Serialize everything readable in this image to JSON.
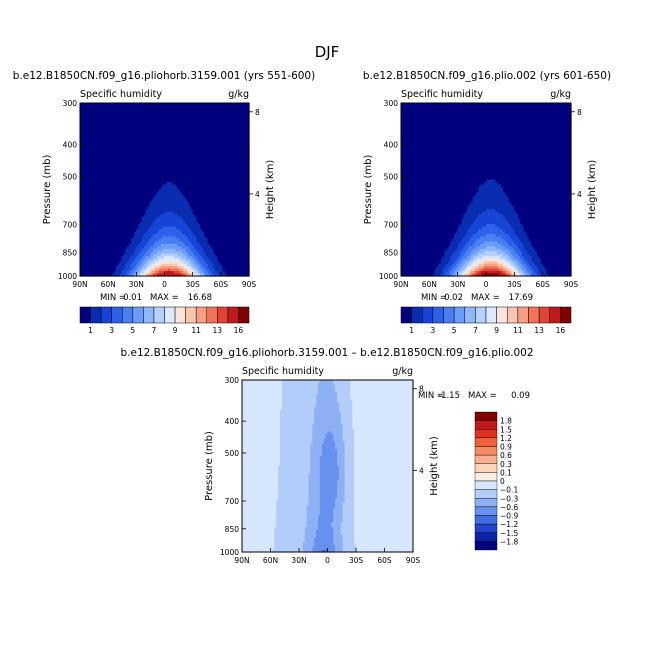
{
  "figure": {
    "title": "DJF"
  },
  "chart_data": [
    {
      "type": "heatmap",
      "title": "b.e12.B1850CN.f09_g16.pliohorb.3159.001 (yrs 551-600)",
      "left_subtitle": "Specific humidity",
      "right_subtitle": "g/kg",
      "ylabel": "Pressure (mb)",
      "y2label": "Height (km)",
      "xticks": [
        "90N",
        "60N",
        "30N",
        "0",
        "30S",
        "60S",
        "90S"
      ],
      "yticks": [
        300,
        400,
        500,
        700,
        850,
        1000
      ],
      "y2ticks": [
        8,
        4
      ],
      "ylim": [
        1000,
        300
      ],
      "xlim": [
        90,
        -90
      ],
      "min_label": "MIN =",
      "min_value": "0.01",
      "max_label": "MAX =",
      "max_value": "16.68",
      "field": {
        "peak": 16.68,
        "center_lat": -5,
        "width_surface": 26,
        "width_decay": 0.45,
        "scale_p": 170
      },
      "colorbar": {
        "labels": [
          "1",
          "3",
          "5",
          "7",
          "9",
          "11",
          "13",
          "16"
        ],
        "levels": [
          1,
          2,
          3,
          4,
          5,
          6,
          7,
          8,
          9,
          10,
          11,
          12,
          13,
          14,
          16
        ],
        "colors": [
          "#00007e",
          "#0a2cb0",
          "#1645d6",
          "#2d62e8",
          "#4a7ff2",
          "#6b9cf7",
          "#8fb7fb",
          "#b6d1fd",
          "#dde9fe",
          "#fce5dc",
          "#fbc6b0",
          "#f89e83",
          "#f1735a",
          "#e04434",
          "#c01a1a",
          "#800000"
        ]
      }
    },
    {
      "type": "heatmap",
      "title": "b.e12.B1850CN.f09_g16.plio.002 (yrs 601-650)",
      "left_subtitle": "Specific humidity",
      "right_subtitle": "g/kg",
      "ylabel": "Pressure (mb)",
      "y2label": "Height (km)",
      "xticks": [
        "90N",
        "60N",
        "30N",
        "0",
        "30S",
        "60S",
        "90S"
      ],
      "yticks": [
        300,
        400,
        500,
        700,
        850,
        1000
      ],
      "y2ticks": [
        8,
        4
      ],
      "ylim": [
        1000,
        300
      ],
      "xlim": [
        90,
        -90
      ],
      "min_label": "MIN =",
      "min_value": "0.02",
      "max_label": "MAX =",
      "max_value": "17.69",
      "field": {
        "peak": 17.69,
        "center_lat": -5,
        "width_surface": 26,
        "width_decay": 0.45,
        "scale_p": 170
      },
      "colorbar": {
        "labels": [
          "1",
          "3",
          "5",
          "7",
          "9",
          "11",
          "13",
          "16"
        ],
        "levels": [
          1,
          2,
          3,
          4,
          5,
          6,
          7,
          8,
          9,
          10,
          11,
          12,
          13,
          14,
          16
        ],
        "colors": [
          "#00007e",
          "#0a2cb0",
          "#1645d6",
          "#2d62e8",
          "#4a7ff2",
          "#6b9cf7",
          "#8fb7fb",
          "#b6d1fd",
          "#dde9fe",
          "#fce5dc",
          "#fbc6b0",
          "#f89e83",
          "#f1735a",
          "#e04434",
          "#c01a1a",
          "#800000"
        ]
      }
    },
    {
      "type": "heatmap",
      "title": "b.e12.B1850CN.f09_g16.pliohorb.3159.001 – b.e12.B1850CN.f09_g16.plio.002",
      "left_subtitle": "Specific humidity",
      "right_subtitle": "g/kg",
      "ylabel": "Pressure (mb)",
      "y2label": "Height (km)",
      "xticks": [
        "90N",
        "60N",
        "30N",
        "0",
        "30S",
        "60S",
        "90S"
      ],
      "yticks": [
        300,
        400,
        500,
        700,
        850,
        1000
      ],
      "y2ticks": [
        8,
        4
      ],
      "ylim": [
        1000,
        300
      ],
      "xlim": [
        90,
        -90
      ],
      "min_label": "MIN =",
      "min_value": "-1.15",
      "max_label": "MAX =",
      "max_value": "0.09",
      "colorbar": {
        "labels": [
          "1.8",
          "1.5",
          "1.2",
          "0.9",
          "0.6",
          "0.3",
          "0.1",
          "0",
          "−0.1",
          "−0.3",
          "−0.6",
          "−0.9",
          "−1.2",
          "−1.5",
          "−1.8"
        ],
        "colors": [
          "#800000",
          "#c01a1a",
          "#e03020",
          "#f0603a",
          "#f68a60",
          "#f9b090",
          "#fcd4bc",
          "#fdece2",
          "#d6e6fd",
          "#b3cdfa",
          "#8eb1f5",
          "#6890ee",
          "#426ce2",
          "#2245cc",
          "#0c22a8",
          "#00007e"
        ]
      }
    }
  ]
}
